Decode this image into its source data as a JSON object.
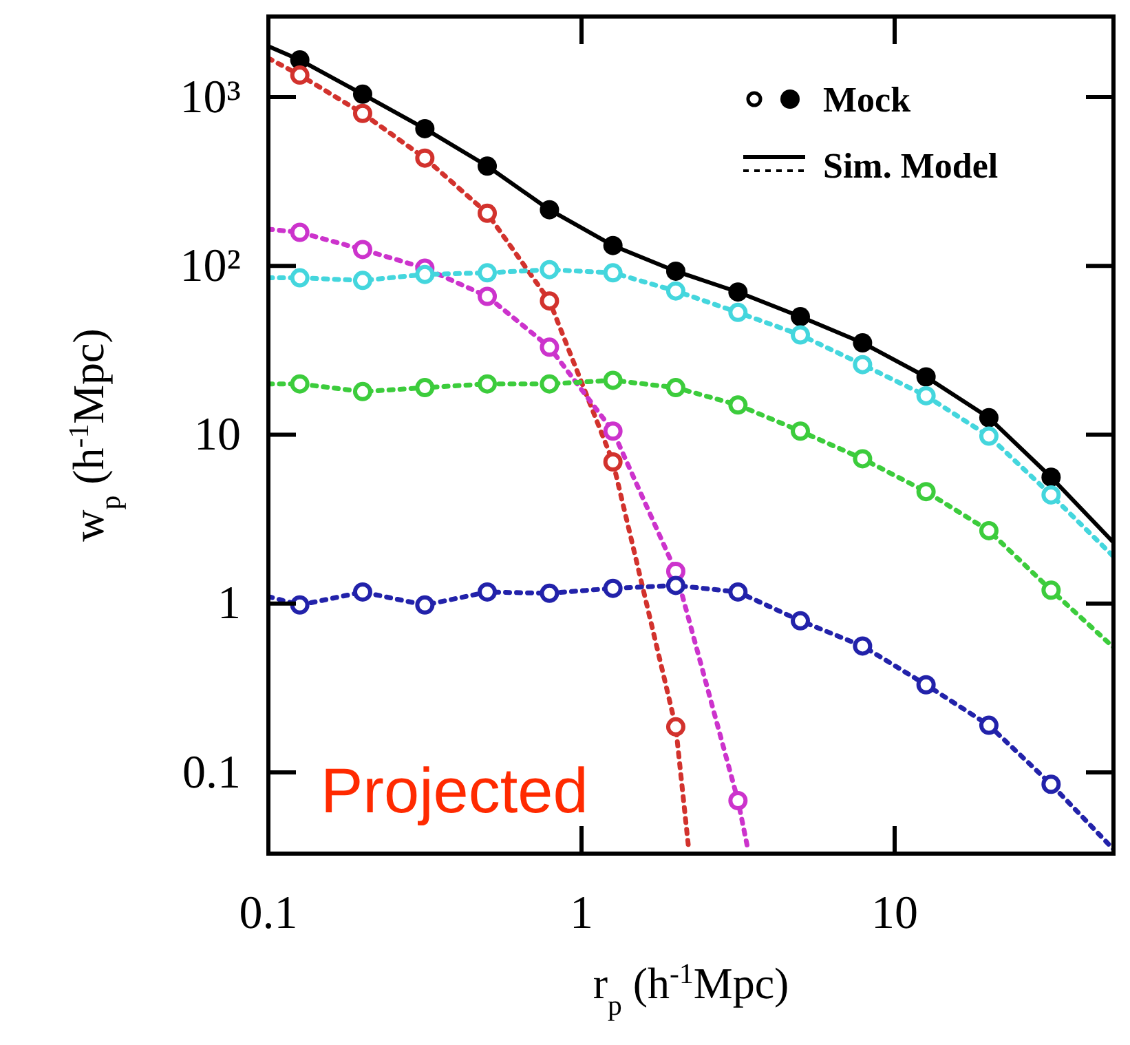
{
  "chart_data": {
    "type": "line",
    "xlabel": "r$_{p}$ (h$^{-1}$Mpc)",
    "ylabel": "w$_{p}$ (h$^{-1}$Mpc)",
    "log": "xy",
    "xlim": [
      0.1,
      50
    ],
    "ylim": [
      0.033,
      3000
    ],
    "xticks": [
      0.1,
      1,
      10
    ],
    "yticks": [
      0.1,
      1,
      10,
      {
        "value": 100,
        "label": "10²"
      },
      {
        "value": 1000,
        "label": "10³"
      }
    ],
    "legend": "top right",
    "grid": false,
    "annotations": [
      "Projected"
    ],
    "series": [
      {
        "name": "Mock",
        "type": "scatter",
        "marker": "circle",
        "color": "#000000",
        "x": [
          0.126,
          0.2,
          0.316,
          0.5,
          0.79,
          1.26,
          2,
          3.16,
          5,
          7.9,
          12.6,
          20,
          31.6
        ],
        "values": [
          1660,
          1040,
          650,
          390,
          215,
          132,
          93,
          70,
          50,
          35,
          22,
          12.6,
          5.6
        ]
      },
      {
        "name": "Sim. Model",
        "line_style": "solid",
        "marker": "none",
        "color": "#000000",
        "x": [
          0.1,
          0.126,
          0.2,
          0.316,
          0.5,
          0.79,
          1.26,
          2,
          3.16,
          5,
          7.9,
          12.6,
          20,
          31.6,
          50
        ],
        "values": [
          2000,
          1660,
          1040,
          650,
          390,
          215,
          132,
          93,
          70,
          50,
          35,
          22,
          12.6,
          5.6,
          2.3
        ]
      },
      {
        "line_style": "dotted",
        "marker": "none",
        "color": "#d2322d",
        "x": [
          0.1,
          0.126,
          0.2,
          0.316,
          0.5,
          0.79,
          1.26,
          2,
          2.2
        ],
        "values": [
          1700,
          1350,
          800,
          435,
          205,
          62,
          6.9,
          0.186,
          0.035
        ]
      },
      {
        "type": "scatter",
        "marker": "circle",
        "color": "#d2322d",
        "x": [
          0.126,
          0.2,
          0.316,
          0.5,
          0.79,
          1.26,
          2
        ],
        "values": [
          1350,
          800,
          435,
          205,
          62,
          6.9,
          0.186
        ]
      },
      {
        "line_style": "dotted",
        "marker": "none",
        "color": "#cc33cc",
        "x": [
          0.1,
          0.126,
          0.2,
          0.316,
          0.5,
          0.79,
          1.26,
          2,
          3.16,
          3.4
        ],
        "values": [
          165,
          158,
          125,
          97,
          66,
          33,
          10.5,
          1.55,
          0.068,
          0.035
        ]
      },
      {
        "type": "scatter",
        "marker": "circle",
        "color": "#cc33cc",
        "x": [
          0.126,
          0.2,
          0.316,
          0.5,
          0.79,
          1.26,
          2,
          3.16
        ],
        "values": [
          158,
          125,
          97,
          66,
          33,
          10.5,
          1.55,
          0.068
        ]
      },
      {
        "line_style": "dotted",
        "marker": "none",
        "color": "#44d6dd",
        "x": [
          0.1,
          0.126,
          0.2,
          0.316,
          0.5,
          0.79,
          1.26,
          2,
          3.16,
          5,
          7.9,
          12.6,
          20,
          31.6,
          50
        ],
        "values": [
          85,
          85,
          82,
          89,
          91,
          95,
          91,
          71,
          53,
          39,
          26,
          17,
          9.8,
          4.4,
          1.9
        ]
      },
      {
        "type": "scatter",
        "marker": "circle",
        "color": "#44d6dd",
        "x": [
          0.126,
          0.2,
          0.316,
          0.5,
          0.79,
          1.26,
          2,
          3.16,
          5,
          7.9,
          12.6,
          20,
          31.6
        ],
        "values": [
          85,
          82,
          89,
          91,
          95,
          91,
          71,
          53,
          39,
          26,
          17,
          9.8,
          4.4
        ]
      },
      {
        "line_style": "dotted",
        "marker": "none",
        "color": "#3ccc3c",
        "x": [
          0.1,
          0.126,
          0.2,
          0.316,
          0.5,
          0.79,
          1.26,
          2,
          3.16,
          5,
          7.9,
          12.6,
          20,
          31.6,
          50
        ],
        "values": [
          20,
          20,
          18,
          19,
          20,
          20,
          21,
          19,
          15,
          10.5,
          7.2,
          4.6,
          2.7,
          1.2,
          0.55
        ]
      },
      {
        "type": "scatter",
        "marker": "circle",
        "color": "#3ccc3c",
        "x": [
          0.126,
          0.2,
          0.316,
          0.5,
          0.79,
          1.26,
          2,
          3.16,
          5,
          7.9,
          12.6,
          20,
          31.6
        ],
        "values": [
          20,
          18,
          19,
          20,
          20,
          21,
          19,
          15,
          10.5,
          7.2,
          4.6,
          2.7,
          1.2
        ]
      },
      {
        "line_style": "dotted",
        "marker": "none",
        "color": "#2222aa",
        "x": [
          0.1,
          0.126,
          0.2,
          0.316,
          0.5,
          0.79,
          1.26,
          2,
          3.16,
          5,
          7.9,
          12.6,
          20,
          31.6,
          50
        ],
        "values": [
          1.1,
          0.98,
          1.17,
          0.98,
          1.17,
          1.15,
          1.23,
          1.28,
          1.17,
          0.79,
          0.56,
          0.33,
          0.19,
          0.085,
          0.035
        ]
      },
      {
        "type": "scatter",
        "marker": "circle",
        "color": "#2222aa",
        "x": [
          0.126,
          0.2,
          0.316,
          0.5,
          0.79,
          1.26,
          2,
          3.16,
          5,
          7.9,
          12.6,
          20,
          31.6
        ],
        "values": [
          0.98,
          1.17,
          0.98,
          1.17,
          1.15,
          1.23,
          1.28,
          1.17,
          0.79,
          0.56,
          0.33,
          0.19,
          0.085
        ]
      }
    ]
  }
}
